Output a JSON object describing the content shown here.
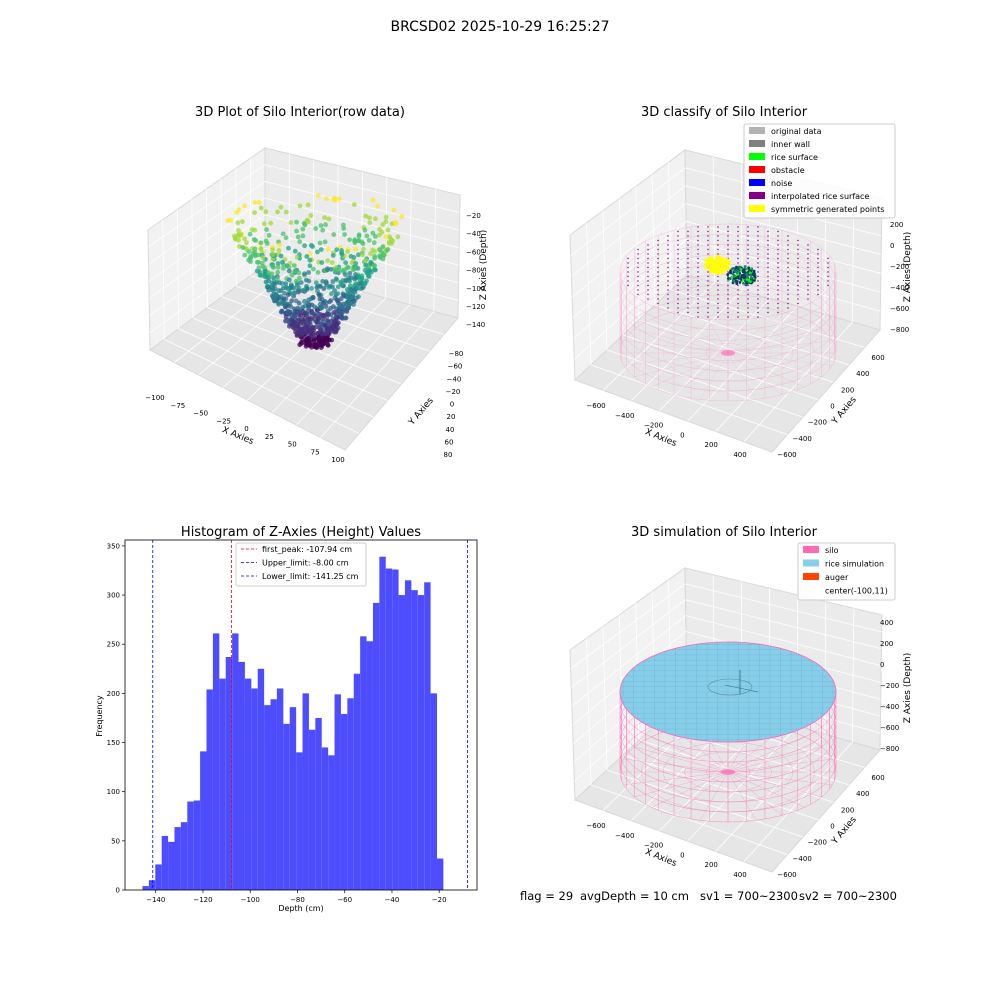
{
  "figure_title": "BRCSD02 2025-10-29 16:25:27",
  "footer": {
    "flag": "flag = 29",
    "avg": "avgDepth = 10 cm",
    "sv1": "sv1 = 700~2300",
    "sv2": "sv2 = 700~2300"
  },
  "colors": {
    "hist_bar": "#4d4dff",
    "silo_pink": "#ff69b4",
    "rice_sky": "#87ceeb",
    "auger": "#ff4500",
    "rice_surface": "#00ff00",
    "noise": "#0000ff",
    "obstacle": "#ff0000",
    "interp": "#800080",
    "sym": "#ffff00",
    "inner_wall": "#808080",
    "original": "#b3b3b3"
  },
  "chart_data": [
    {
      "type": "scatter",
      "title": "3D Plot of Silo Interior(row data)",
      "xlabel": "X Axies",
      "ylabel": "Y Axies",
      "zlabel": "Z Axies (Depth)",
      "xticks": [
        "−100",
        "−75",
        "−50",
        "−25",
        "0",
        "25",
        "50",
        "75",
        "100"
      ],
      "yticks": [
        "−80",
        "−60",
        "−40",
        "−20",
        "0",
        "20",
        "40",
        "60",
        "80"
      ],
      "zticks": [
        "−20",
        "−40",
        "−60",
        "−80",
        "−100",
        "−120",
        "−140"
      ],
      "xlim": [
        -100,
        100
      ],
      "ylim": [
        -80,
        80
      ],
      "zlim": [
        -150,
        -10
      ],
      "colormap": "viridis",
      "grid": true
    },
    {
      "type": "scatter",
      "title": "3D classify of Silo Interior",
      "xlabel": "X Axies",
      "ylabel": "Y Axies",
      "zlabel": "Z Axies (Depth)",
      "xticks": [
        "−600",
        "−400",
        "−200",
        "0",
        "200",
        "400"
      ],
      "yticks": [
        "600",
        "400",
        "200",
        "0",
        "−200",
        "−400",
        "−600"
      ],
      "zticks": [
        "200",
        "0",
        "−200",
        "−400",
        "−600",
        "−800"
      ],
      "legend_position": "top-right",
      "legend": [
        {
          "label": "original data",
          "color": "#b3b3b3"
        },
        {
          "label": "inner wall",
          "color": "#808080"
        },
        {
          "label": "rice surface",
          "color": "#00ff00"
        },
        {
          "label": "obstacle",
          "color": "#ff0000"
        },
        {
          "label": "noise",
          "color": "#0000ff"
        },
        {
          "label": "interpolated rice surface",
          "color": "#800080"
        },
        {
          "label": "symmetric generated points",
          "color": "#ffff00"
        }
      ],
      "grid": true
    },
    {
      "type": "bar",
      "title": "Histogram of Z-Axies (Height) Values",
      "xlabel": "Depth (cm)",
      "ylabel": "Frequency",
      "xlim": [
        -153,
        -4
      ],
      "ylim": [
        0,
        356
      ],
      "xticks": [
        "−140",
        "−120",
        "−100",
        "−80",
        "−60",
        "−40",
        "−20"
      ],
      "xtick_values": [
        -140,
        -120,
        -100,
        -80,
        -60,
        -40,
        -20
      ],
      "yticks": [
        "0",
        "50",
        "100",
        "150",
        "200",
        "250",
        "300",
        "350"
      ],
      "ytick_values": [
        0,
        50,
        100,
        150,
        200,
        250,
        300,
        350
      ],
      "bin_start": -145.6,
      "bin_width": 2.71,
      "values": [
        4,
        10,
        26,
        55,
        49,
        64,
        69,
        90,
        91,
        141,
        204,
        261,
        215,
        237,
        261,
        232,
        215,
        205,
        225,
        188,
        194,
        205,
        169,
        186,
        140,
        200,
        163,
        175,
        145,
        137,
        199,
        179,
        195,
        220,
        258,
        253,
        292,
        339,
        327,
        326,
        300,
        315,
        305,
        300,
        313,
        200,
        32
      ],
      "lines": [
        {
          "label": "first_peak: -107.94 cm",
          "x": -107.94,
          "color": "#ff0000"
        },
        {
          "label": "Upper_limit: -8.00 cm",
          "x": -8.0,
          "color": "#0000ff"
        },
        {
          "label": "Lower_limit: -141.25 cm",
          "x": -141.25,
          "color": "#0000ff"
        }
      ],
      "legend_position": "top-center"
    },
    {
      "type": "scatter",
      "title": "3D simulation of Silo Interior",
      "xlabel": "X Axies",
      "ylabel": "Y Axies",
      "zlabel": "Z Axies (Depth)",
      "xticks": [
        "−600",
        "−400",
        "−200",
        "0",
        "200",
        "400"
      ],
      "yticks": [
        "600",
        "400",
        "200",
        "0",
        "−200",
        "−400",
        "−600"
      ],
      "zticks": [
        "400",
        "200",
        "0",
        "−200",
        "−400",
        "−600",
        "−800"
      ],
      "legend_position": "top-right",
      "legend": [
        {
          "label": "silo",
          "color": "#ff69b4"
        },
        {
          "label": "rice simulation",
          "color": "#87ceeb"
        },
        {
          "label": "auger",
          "color": "#ff4500"
        },
        {
          "label": "center(-100,11)",
          "color": ""
        }
      ],
      "grid": true
    }
  ]
}
